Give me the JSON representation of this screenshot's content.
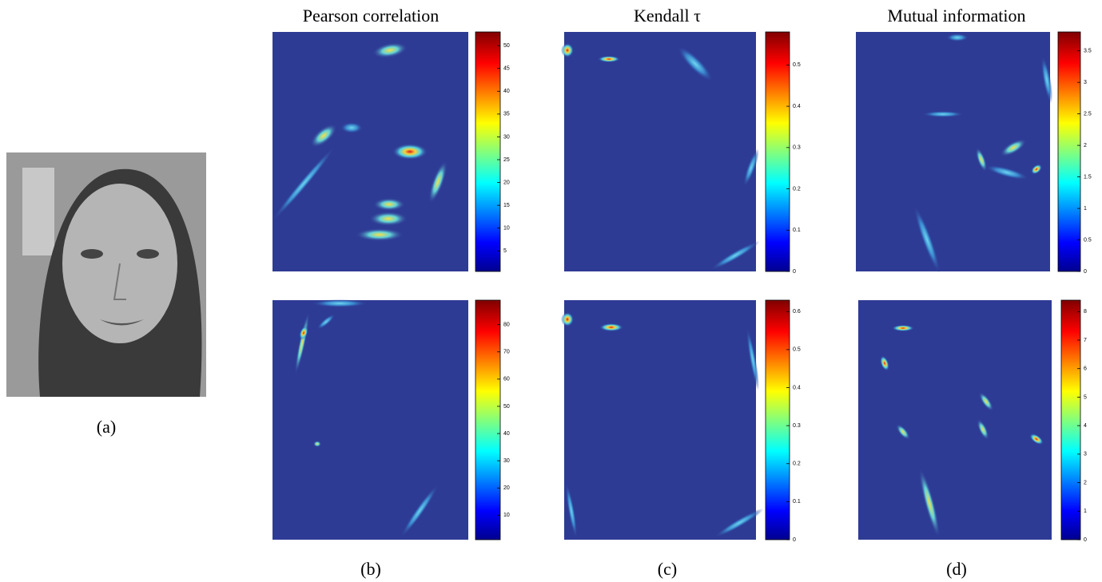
{
  "photo_label": "(a)",
  "columns": [
    {
      "title": "Pearson correlation",
      "label": "(b)",
      "colorbars": [
        {
          "clim": [
            0.5,
            53
          ],
          "ticks": [
            5,
            10,
            15,
            20,
            25,
            30,
            35,
            40,
            45,
            50
          ]
        },
        {
          "clim": [
            1,
            89
          ],
          "ticks": [
            10,
            20,
            30,
            40,
            50,
            60,
            70,
            80
          ]
        }
      ]
    },
    {
      "title": "Kendall τ",
      "label": "(c)",
      "colorbars": [
        {
          "clim": [
            0,
            0.58
          ],
          "ticks": [
            0,
            0.1,
            0.2,
            0.3,
            0.4,
            0.5
          ]
        },
        {
          "clim": [
            0,
            0.63
          ],
          "ticks": [
            0,
            0.1,
            0.2,
            0.3,
            0.4,
            0.5,
            0.6
          ]
        }
      ]
    },
    {
      "title": "Mutual information",
      "label": "(d)",
      "colorbars": [
        {
          "clim": [
            0,
            3.8
          ],
          "ticks": [
            0,
            0.5,
            1,
            1.5,
            2,
            2.5,
            3,
            3.5
          ]
        },
        {
          "clim": [
            0,
            8.4
          ],
          "ticks": [
            0,
            1,
            2,
            3,
            4,
            5,
            6,
            7,
            8
          ]
        }
      ]
    }
  ]
}
